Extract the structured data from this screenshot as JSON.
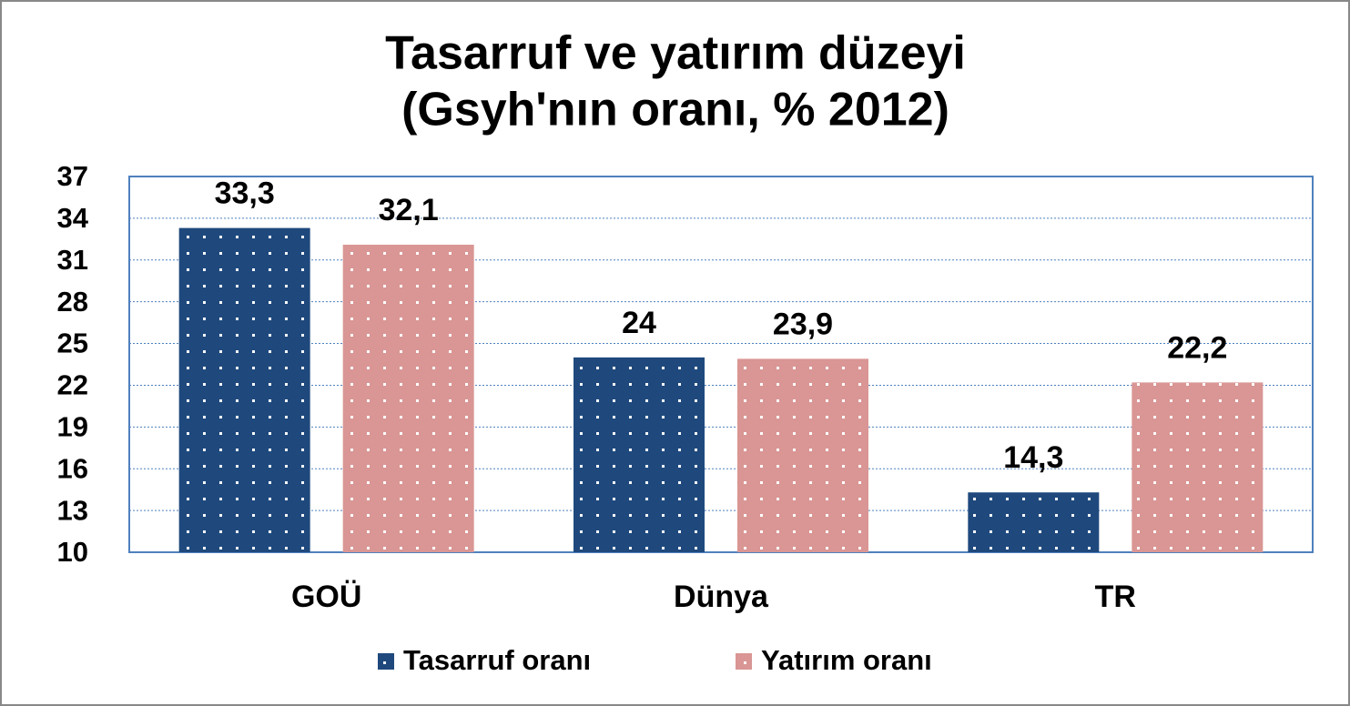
{
  "chart_data": {
    "type": "bar",
    "title": [
      "Tasarruf ve yatırım düzeyi",
      "(Gsyh'nın oranı, % 2012)"
    ],
    "categories": [
      "GOÜ",
      "Dünya",
      "TR"
    ],
    "series": [
      {
        "name": "Tasarruf oranı",
        "color": "#1f497d",
        "values": [
          33.3,
          24,
          14.3
        ],
        "value_labels": [
          "33,3",
          "24",
          "14,3"
        ]
      },
      {
        "name": "Yatırım oranı",
        "color": "#d99694",
        "values": [
          32.1,
          23.9,
          22.2
        ],
        "value_labels": [
          "32,1",
          "23,9",
          "22,2"
        ]
      }
    ],
    "ylim": [
      10,
      37
    ],
    "yticks": [
      10,
      13,
      16,
      19,
      22,
      25,
      28,
      31,
      34,
      37
    ],
    "grid": true
  }
}
